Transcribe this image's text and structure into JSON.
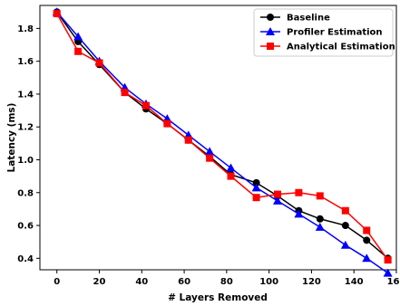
{
  "chart_data": {
    "type": "line",
    "title": "",
    "xlabel": "# Layers Removed",
    "ylabel": "Latency (ms)",
    "xlim": [
      -8,
      160
    ],
    "ylim": [
      0.33,
      1.94
    ],
    "xticks": [
      0,
      20,
      40,
      60,
      80,
      100,
      120,
      140,
      160
    ],
    "yticks": [
      0.4,
      0.6,
      0.8,
      1.0,
      1.2,
      1.4,
      1.6,
      1.8
    ],
    "ytick_labels": [
      "0.4",
      "0.6",
      "0.8",
      "1.0",
      "1.2",
      "1.4",
      "1.6",
      "1.8"
    ],
    "grid": false,
    "legend_position": "top-right",
    "series": [
      {
        "name": "Baseline",
        "color": "#000000",
        "marker": "circle",
        "x": [
          0,
          10,
          20,
          32,
          42,
          52,
          62,
          72,
          82,
          94,
          104,
          114,
          124,
          136,
          146,
          156
        ],
        "y": [
          1.9,
          1.72,
          1.58,
          1.41,
          1.31,
          1.22,
          1.12,
          1.02,
          0.91,
          0.86,
          0.78,
          0.69,
          0.64,
          0.6,
          0.51,
          0.4
        ]
      },
      {
        "name": "Profiler Estimation",
        "color": "#0000ff",
        "marker": "triangle",
        "x": [
          0,
          10,
          20,
          32,
          42,
          52,
          62,
          72,
          82,
          94,
          104,
          114,
          124,
          136,
          146,
          156
        ],
        "y": [
          1.9,
          1.75,
          1.6,
          1.44,
          1.34,
          1.25,
          1.15,
          1.05,
          0.95,
          0.83,
          0.75,
          0.67,
          0.59,
          0.48,
          0.4,
          0.31
        ]
      },
      {
        "name": "Analytical Estimation",
        "color": "#ff0000",
        "marker": "square",
        "x": [
          0,
          10,
          20,
          32,
          42,
          52,
          62,
          72,
          82,
          94,
          104,
          114,
          124,
          136,
          146,
          156
        ],
        "y": [
          1.89,
          1.66,
          1.59,
          1.41,
          1.33,
          1.22,
          1.12,
          1.01,
          0.9,
          0.77,
          0.79,
          0.8,
          0.78,
          0.69,
          0.57,
          0.39
        ]
      }
    ]
  }
}
